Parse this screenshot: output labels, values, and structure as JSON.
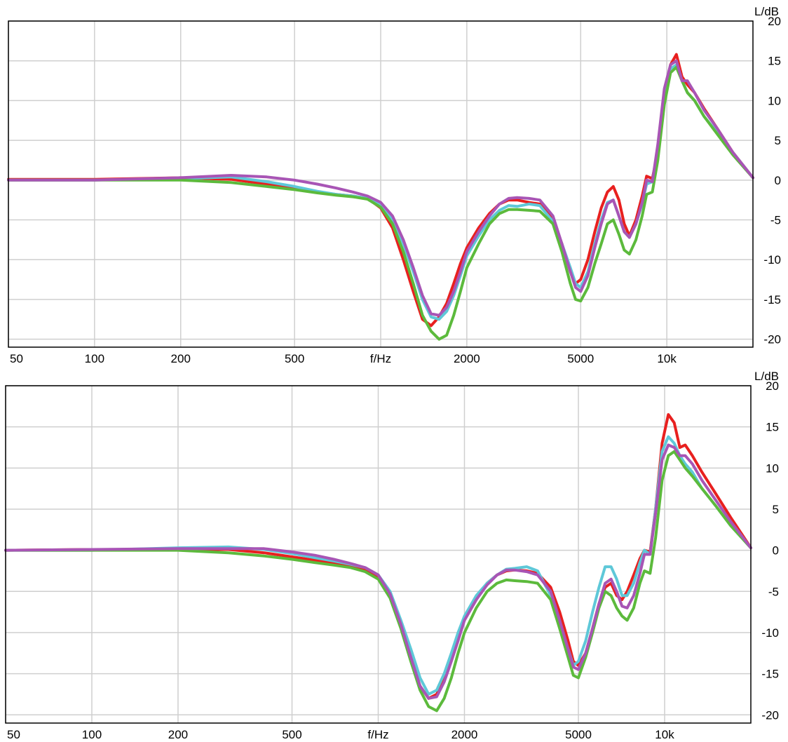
{
  "chart_data": [
    {
      "type": "line",
      "xscale": "log",
      "xlim": [
        50,
        20000
      ],
      "ylim": [
        -21,
        20
      ],
      "xlabel": "f/Hz",
      "ylabel": "L/dB",
      "x_ticks": [
        {
          "value": 50,
          "label": "50"
        },
        {
          "value": 100,
          "label": "100"
        },
        {
          "value": 200,
          "label": "200"
        },
        {
          "value": 500,
          "label": "500"
        },
        {
          "value": 1000,
          "label": "f/Hz"
        },
        {
          "value": 2000,
          "label": "2000"
        },
        {
          "value": 5000,
          "label": "5000"
        },
        {
          "value": 10000,
          "label": "10k"
        }
      ],
      "y_ticks": [
        20,
        15,
        10,
        5,
        0,
        -5,
        -10,
        -15,
        -20
      ],
      "grid": true,
      "x": [
        50,
        100,
        200,
        300,
        400,
        500,
        600,
        700,
        800,
        900,
        1000,
        1100,
        1200,
        1300,
        1400,
        1500,
        1600,
        1700,
        1800,
        1900,
        2000,
        2200,
        2400,
        2600,
        2800,
        3000,
        3300,
        3600,
        4000,
        4300,
        4600,
        4800,
        5000,
        5300,
        5600,
        5900,
        6200,
        6500,
        6800,
        7100,
        7400,
        7800,
        8200,
        8500,
        8900,
        9300,
        9800,
        10300,
        10800,
        11300,
        11800,
        12500,
        13500,
        15000,
        17000,
        20000
      ],
      "series": [
        {
          "color": "#e8201f",
          "values": [
            0.1,
            0.1,
            0.3,
            0.1,
            -0.5,
            -1.0,
            -1.5,
            -1.8,
            -2.0,
            -2.3,
            -3.5,
            -6.0,
            -10.0,
            -14.0,
            -17.5,
            -18.3,
            -17.2,
            -15.5,
            -13.0,
            -10.5,
            -8.5,
            -6.0,
            -4.2,
            -3.0,
            -2.5,
            -2.5,
            -2.8,
            -3.0,
            -5.0,
            -8.0,
            -11.5,
            -13.0,
            -12.5,
            -10.0,
            -6.5,
            -3.5,
            -1.5,
            -0.8,
            -2.5,
            -5.5,
            -7.0,
            -5.0,
            -2.0,
            0.5,
            0.2,
            3.5,
            10.5,
            14.5,
            15.8,
            13.0,
            12.0,
            11.0,
            9.0,
            6.5,
            3.5,
            0.3
          ]
        },
        {
          "color": "#5ec8d8",
          "values": [
            0.0,
            0.0,
            0.2,
            0.4,
            -0.2,
            -0.8,
            -1.4,
            -1.8,
            -2.0,
            -2.3,
            -3.0,
            -5.0,
            -8.0,
            -11.5,
            -15.0,
            -17.2,
            -17.5,
            -16.5,
            -14.5,
            -12.0,
            -9.5,
            -7.0,
            -5.0,
            -3.8,
            -3.2,
            -3.3,
            -3.0,
            -3.2,
            -5.2,
            -8.0,
            -11.0,
            -13.0,
            -13.5,
            -11.5,
            -8.0,
            -5.0,
            -2.8,
            -2.5,
            -4.5,
            -6.5,
            -7.2,
            -5.5,
            -3.0,
            -0.5,
            -0.2,
            4.0,
            11.0,
            14.0,
            14.5,
            12.5,
            11.0,
            10.0,
            8.0,
            6.0,
            3.5,
            0.3
          ]
        },
        {
          "color": "#5cba3c",
          "values": [
            0.0,
            0.0,
            0.0,
            -0.3,
            -0.8,
            -1.2,
            -1.6,
            -1.9,
            -2.1,
            -2.4,
            -3.4,
            -5.5,
            -9.0,
            -13.0,
            -17.0,
            -19.0,
            -20.0,
            -19.5,
            -17.0,
            -14.0,
            -11.0,
            -8.0,
            -5.5,
            -4.2,
            -3.7,
            -3.7,
            -3.8,
            -3.9,
            -5.5,
            -9.0,
            -13.0,
            -15.0,
            -15.2,
            -13.5,
            -10.5,
            -8.0,
            -5.5,
            -5.0,
            -6.8,
            -8.8,
            -9.3,
            -7.5,
            -4.5,
            -1.8,
            -1.5,
            2.5,
            9.5,
            13.5,
            14.2,
            12.5,
            11.0,
            10.0,
            8.0,
            5.8,
            3.2,
            0.3
          ]
        },
        {
          "color": "#a855b5",
          "values": [
            0.0,
            0.0,
            0.3,
            0.6,
            0.4,
            0.0,
            -0.5,
            -1.0,
            -1.5,
            -2.0,
            -2.8,
            -4.5,
            -7.5,
            -11.0,
            -14.5,
            -16.8,
            -17.0,
            -16.0,
            -14.0,
            -11.5,
            -9.0,
            -6.5,
            -4.5,
            -3.0,
            -2.3,
            -2.2,
            -2.3,
            -2.5,
            -4.5,
            -8.0,
            -11.5,
            -13.5,
            -14.0,
            -12.0,
            -8.5,
            -5.5,
            -3.0,
            -2.5,
            -4.5,
            -6.5,
            -7.2,
            -5.5,
            -2.8,
            0.0,
            -0.2,
            4.5,
            11.5,
            14.5,
            15.0,
            12.5,
            12.5,
            11.0,
            8.8,
            6.5,
            3.5,
            0.3
          ]
        }
      ]
    },
    {
      "type": "line",
      "xscale": "log",
      "xlim": [
        50,
        20000
      ],
      "ylim": [
        -21,
        20
      ],
      "xlabel": "f/Hz",
      "ylabel": "L/dB",
      "x_ticks": [
        {
          "value": 50,
          "label": "50"
        },
        {
          "value": 100,
          "label": "100"
        },
        {
          "value": 200,
          "label": "200"
        },
        {
          "value": 500,
          "label": "500"
        },
        {
          "value": 1000,
          "label": "f/Hz"
        },
        {
          "value": 2000,
          "label": "2000"
        },
        {
          "value": 5000,
          "label": "5000"
        },
        {
          "value": 10000,
          "label": "10k"
        }
      ],
      "y_ticks": [
        20,
        15,
        10,
        5,
        0,
        -5,
        -10,
        -15,
        -20
      ],
      "grid": true,
      "x": [
        50,
        100,
        200,
        300,
        400,
        500,
        600,
        700,
        800,
        900,
        1000,
        1100,
        1200,
        1300,
        1400,
        1500,
        1600,
        1700,
        1800,
        1900,
        2000,
        2200,
        2400,
        2600,
        2800,
        3000,
        3300,
        3600,
        4000,
        4300,
        4600,
        4800,
        5000,
        5300,
        5600,
        5900,
        6200,
        6500,
        6800,
        7100,
        7400,
        7800,
        8200,
        8500,
        8900,
        9300,
        9800,
        10300,
        10800,
        11300,
        11800,
        12500,
        13500,
        15000,
        17000,
        20000
      ],
      "series": [
        {
          "color": "#e8201f",
          "values": [
            0.0,
            0.1,
            0.1,
            0.1,
            -0.3,
            -0.8,
            -1.2,
            -1.6,
            -1.9,
            -2.3,
            -3.3,
            -5.5,
            -9.0,
            -13.0,
            -16.5,
            -18.0,
            -17.5,
            -15.5,
            -13.0,
            -10.5,
            -8.5,
            -6.0,
            -4.0,
            -3.0,
            -2.5,
            -2.4,
            -2.5,
            -2.8,
            -4.5,
            -7.5,
            -11.0,
            -13.5,
            -14.0,
            -12.5,
            -9.5,
            -6.5,
            -4.5,
            -4.0,
            -5.5,
            -6.0,
            -5.0,
            -3.0,
            -1.0,
            0.0,
            -0.2,
            5.0,
            13.0,
            16.5,
            15.5,
            12.5,
            12.8,
            11.5,
            9.5,
            7.0,
            4.0,
            0.3
          ]
        },
        {
          "color": "#5ec8d8",
          "values": [
            0.0,
            0.0,
            0.3,
            0.4,
            0.1,
            -0.4,
            -0.9,
            -1.3,
            -1.7,
            -2.1,
            -3.0,
            -5.0,
            -8.5,
            -12.0,
            -15.5,
            -17.5,
            -17.0,
            -15.0,
            -12.5,
            -10.0,
            -8.0,
            -5.5,
            -4.0,
            -3.0,
            -2.3,
            -2.2,
            -2.0,
            -2.5,
            -5.5,
            -9.0,
            -12.0,
            -14.0,
            -13.5,
            -11.0,
            -7.5,
            -4.5,
            -2.0,
            -2.0,
            -3.5,
            -5.5,
            -5.5,
            -4.0,
            -1.5,
            0.0,
            -0.5,
            5.0,
            12.0,
            13.8,
            13.0,
            11.5,
            10.5,
            9.5,
            7.5,
            5.5,
            3.0,
            0.3
          ]
        },
        {
          "color": "#5cba3c",
          "values": [
            0.0,
            0.0,
            0.0,
            -0.3,
            -0.7,
            -1.1,
            -1.5,
            -1.8,
            -2.1,
            -2.6,
            -3.5,
            -5.8,
            -9.5,
            -13.5,
            -17.0,
            -19.0,
            -19.5,
            -18.0,
            -15.5,
            -12.5,
            -10.0,
            -7.0,
            -5.0,
            -4.0,
            -3.6,
            -3.7,
            -3.8,
            -4.0,
            -6.0,
            -9.5,
            -13.0,
            -15.2,
            -15.5,
            -13.0,
            -10.0,
            -7.0,
            -5.0,
            -5.5,
            -7.0,
            -8.0,
            -8.5,
            -7.0,
            -4.0,
            -2.5,
            -2.8,
            1.5,
            8.5,
            11.5,
            12.0,
            11.0,
            10.0,
            9.0,
            7.5,
            5.5,
            3.0,
            0.3
          ]
        },
        {
          "color": "#a855b5",
          "values": [
            0.0,
            0.1,
            0.2,
            0.2,
            0.2,
            -0.2,
            -0.6,
            -1.1,
            -1.6,
            -2.1,
            -3.0,
            -5.3,
            -9.0,
            -13.0,
            -16.5,
            -18.0,
            -17.8,
            -16.0,
            -13.5,
            -11.0,
            -8.5,
            -6.0,
            -4.2,
            -3.0,
            -2.4,
            -2.4,
            -2.6,
            -3.0,
            -5.0,
            -8.5,
            -12.0,
            -14.2,
            -14.5,
            -12.5,
            -9.5,
            -6.5,
            -4.0,
            -3.5,
            -5.0,
            -6.8,
            -7.0,
            -5.5,
            -2.8,
            -0.5,
            -0.5,
            4.5,
            11.0,
            12.8,
            12.5,
            11.5,
            11.5,
            10.5,
            8.5,
            6.2,
            3.5,
            0.3
          ]
        }
      ]
    }
  ]
}
